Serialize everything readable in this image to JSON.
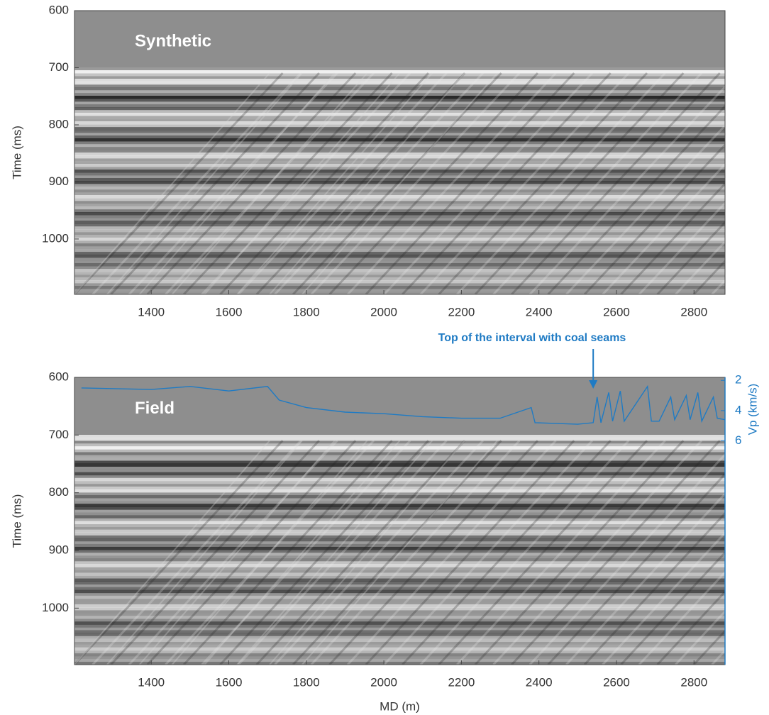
{
  "chart_data": [
    {
      "type": "image",
      "title": "Synthetic",
      "ylabel": "Time (ms)",
      "xlim": [
        1202,
        2880
      ],
      "xticks": [
        1400,
        1600,
        1800,
        2000,
        2200,
        2400,
        2600,
        2800
      ],
      "ylim": [
        600,
        1097
      ],
      "yticks": [
        600,
        700,
        800,
        900,
        1000
      ],
      "y_reversed": true
    },
    {
      "type": "image",
      "title": "Field",
      "ylabel": "Time (ms)",
      "xlabel": "MD (m)",
      "y2label": "Vp (km/s)",
      "annotation": "Top of the interval with coal seams",
      "annotation_x": 2540,
      "xlim": [
        1202,
        2880
      ],
      "xticks": [
        1400,
        1600,
        1800,
        2000,
        2200,
        2400,
        2600,
        2800
      ],
      "ylim": [
        600,
        1098
      ],
      "yticks": [
        600,
        700,
        800,
        900,
        1000
      ],
      "y_reversed": true,
      "y2lim": [
        1.8,
        20.8
      ],
      "y2ticks": [
        2,
        4,
        6
      ],
      "y2_color": "#1f7bc4",
      "series": [
        {
          "color": "#1f7bc4",
          "axis": "y2",
          "x": [
            1220,
            1400,
            1500,
            1600,
            1700,
            1730,
            1800,
            1900,
            2000,
            2100,
            2200,
            2300,
            2380,
            2390,
            2500,
            2540,
            2550,
            2560,
            2580,
            2590,
            2610,
            2620,
            2680,
            2690,
            2710,
            2740,
            2750,
            2780,
            2790,
            2810,
            2820,
            2850,
            2860,
            2880
          ],
          "values": [
            2.5,
            2.6,
            2.4,
            2.7,
            2.4,
            3.3,
            3.8,
            4.1,
            4.2,
            4.4,
            4.5,
            4.5,
            3.8,
            4.8,
            4.9,
            4.8,
            3.1,
            4.8,
            2.8,
            4.7,
            2.7,
            4.7,
            2.4,
            4.7,
            4.7,
            3.1,
            4.6,
            3.0,
            4.6,
            2.8,
            4.7,
            3.1,
            4.5,
            4.6
          ]
        }
      ]
    }
  ]
}
